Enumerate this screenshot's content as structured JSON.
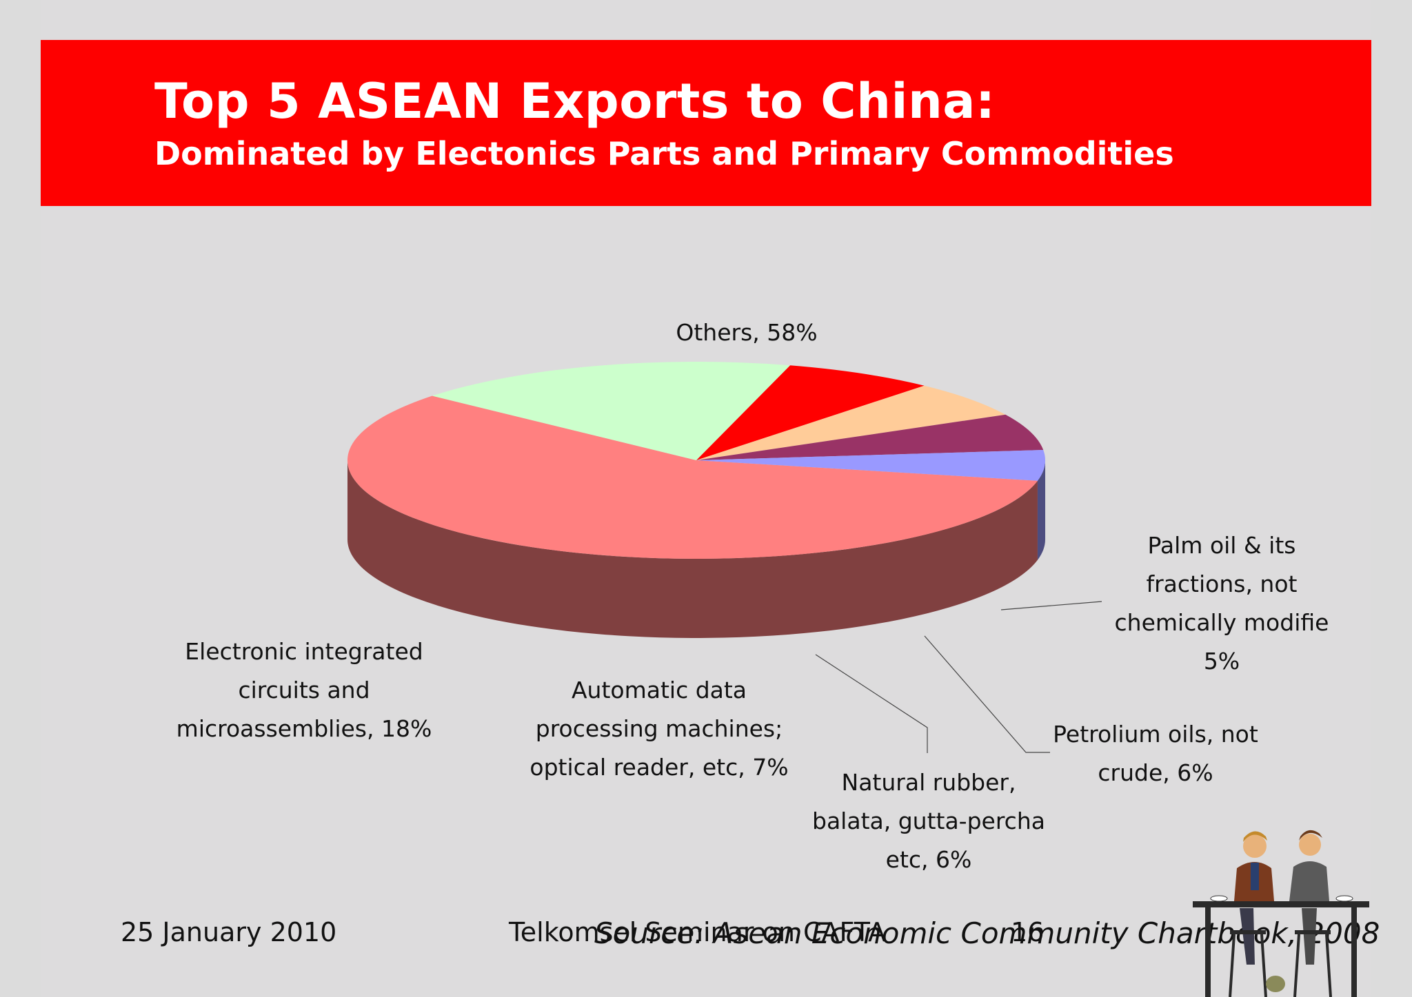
{
  "slide": {
    "title": "Top 5 ASEAN Exports to China:",
    "subtitle": "Dominated by Electonics Parts and Primary Commodities",
    "footer_date": "25 January 2010",
    "footer_event": "Telkomsel Seminar on CAFTA",
    "footer_page": "16",
    "source": "Source: Asean Economic Community Chartbook, 2008",
    "brand_color": "#fe0000"
  },
  "chart_data": {
    "type": "pie",
    "style": "3d",
    "slices": [
      {
        "name": "Others, 58%",
        "label_lines": [
          "Others, 58%"
        ],
        "value": 58,
        "color": "#ff8080",
        "side_color": "#804040"
      },
      {
        "name": "Electronic integrated circuits and microassemblies, 18%",
        "label_lines": [
          "Electronic integrated",
          "circuits and",
          "microassemblies, 18%"
        ],
        "value": 18,
        "color": "#ccffcc",
        "side_color": "#668066"
      },
      {
        "name": "Automatic data processing machines; optical reader, etc, 7%",
        "label_lines": [
          "Automatic data",
          "processing machines;",
          "optical reader, etc, 7%"
        ],
        "value": 7,
        "color": "#ff0000",
        "side_color": "#800000"
      },
      {
        "name": "Natural rubber, balata, gutta-percha etc, 6%",
        "label_lines": [
          "Natural rubber,",
          "balata, gutta-percha",
          "etc, 6%"
        ],
        "value": 6,
        "color": "#ffcc99",
        "side_color": "#806650"
      },
      {
        "name": "Petrolium oils, not crude, 6%",
        "label_lines": [
          "Petrolium oils, not",
          "crude, 6%"
        ],
        "value": 6,
        "color": "#993366",
        "side_color": "#4d1a33"
      },
      {
        "name": "Palm oil & its fractions, not chemically modifie 5%",
        "label_lines": [
          "Palm oil & its",
          "fractions, not",
          "chemically modifie",
          "5%"
        ],
        "value": 5,
        "color": "#9999ff",
        "side_color": "#4d4d80"
      }
    ]
  },
  "illustration": {
    "icon": "two-men-at-cafe-table-clipart"
  }
}
